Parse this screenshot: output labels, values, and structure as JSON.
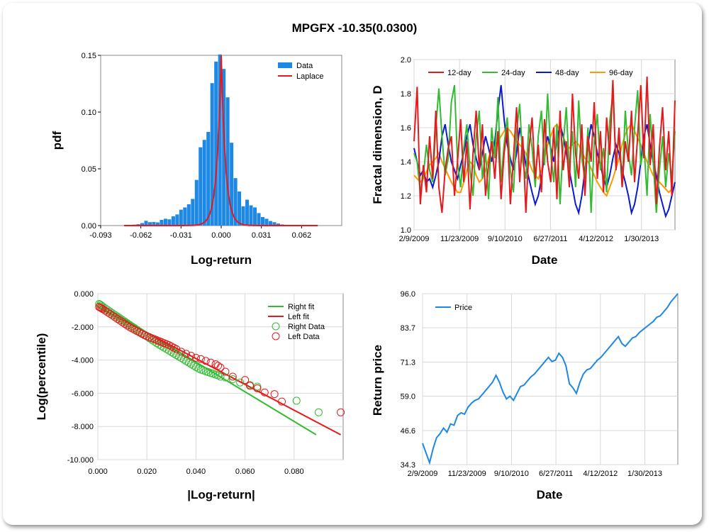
{
  "title": "MPGFX -10.35(0.0300)",
  "chart_data": [
    {
      "id": "hist",
      "type": "bar",
      "xlabel": "Log-return",
      "ylabel": "pdf",
      "xlim": [
        -0.093,
        0.093
      ],
      "ylim": [
        0,
        0.15
      ],
      "xticks": [
        -0.093,
        -0.062,
        -0.031,
        0.0,
        0.031,
        0.062
      ],
      "xtick_labels": [
        "-0.093",
        "-0.062",
        "-0.031",
        "0.000",
        "0.031",
        "0.062"
      ],
      "yticks": [
        0,
        0.05,
        0.1,
        0.15
      ],
      "ytick_labels": [
        "0.00",
        "0.05",
        "0.10",
        "0.15"
      ],
      "legend": [
        "Data",
        "Laplace"
      ],
      "legend_position": "top-right",
      "colors": {
        "bars": "#1e88e5",
        "fit": "#e41a1c"
      },
      "bin_centers": [
        -0.073,
        -0.07,
        -0.067,
        -0.064,
        -0.061,
        -0.058,
        -0.055,
        -0.052,
        -0.049,
        -0.046,
        -0.043,
        -0.04,
        -0.037,
        -0.034,
        -0.031,
        -0.028,
        -0.025,
        -0.022,
        -0.019,
        -0.016,
        -0.013,
        -0.01,
        -0.007,
        -0.004,
        -0.001,
        0.002,
        0.005,
        0.008,
        0.011,
        0.014,
        0.017,
        0.02,
        0.023,
        0.026,
        0.029,
        0.032,
        0.035,
        0.038,
        0.041,
        0.044,
        0.047,
        0.05,
        0.053,
        0.056,
        0.059,
        0.062
      ],
      "values": [
        0.0003,
        0.0003,
        0.0008,
        0.0012,
        0.0022,
        0.0042,
        0.003,
        0.0032,
        0.0028,
        0.005,
        0.006,
        0.0055,
        0.0082,
        0.0098,
        0.014,
        0.016,
        0.0188,
        0.0235,
        0.0402,
        0.069,
        0.0755,
        0.0825,
        0.1255,
        0.1445,
        0.1508,
        0.138,
        0.113,
        0.073,
        0.0418,
        0.03,
        0.017,
        0.0228,
        0.0178,
        0.016,
        0.011,
        0.0075,
        0.006,
        0.004,
        0.003,
        0.0018,
        0.001,
        0.0006,
        0.0004,
        0.0003,
        0.0002,
        0.0001
      ],
      "laplace": {
        "mu": 0.0,
        "b": 0.0033
      }
    },
    {
      "id": "fractal",
      "type": "line",
      "xlabel": "Date",
      "ylabel": "Fractal dimension, D",
      "ylim": [
        1.0,
        2.0
      ],
      "yticks": [
        1.0,
        1.2,
        1.4,
        1.6,
        1.8,
        2.0
      ],
      "ytick_labels": [
        "1.0",
        "1.2",
        "1.4",
        "1.6",
        "1.8",
        "2.0"
      ],
      "xtick_labels": [
        "2/9/2009",
        "11/23/2009",
        "9/10/2010",
        "6/27/2011",
        "4/12/2012",
        "1/30/2013"
      ],
      "legend_position": "top",
      "series": [
        {
          "name": "12-day",
          "color": "#e41a1c",
          "values": [
            1.52,
            1.84,
            1.15,
            1.38,
            1.22,
            1.55,
            1.3,
            1.7,
            1.25,
            1.1,
            1.35,
            1.48,
            1.55,
            1.2,
            1.4,
            1.65,
            1.28,
            1.52,
            1.12,
            1.45,
            1.7,
            1.35,
            1.62,
            1.2,
            1.38,
            1.52,
            1.3,
            1.58,
            1.18,
            1.45,
            1.6,
            1.15,
            1.42,
            1.72,
            1.28,
            1.55,
            1.1,
            1.48,
            1.66,
            1.3,
            1.5,
            1.22,
            1.65,
            1.4,
            1.28,
            1.6,
            1.18,
            1.7,
            1.35,
            1.52,
            1.25,
            1.8,
            1.45,
            1.3,
            1.62,
            1.2,
            1.55,
            1.4,
            1.75,
            1.3,
            1.58,
            1.22,
            1.66,
            1.44,
            1.88,
            1.35,
            1.6,
            1.25,
            1.52,
            1.4,
            1.7,
            1.28,
            1.55,
            1.85,
            1.42,
            1.9,
            1.38,
            1.62,
            1.15,
            1.48,
            1.72,
            1.35,
            1.58,
            1.2,
            1.76
          ]
        },
        {
          "name": "24-day",
          "color": "#33bb33",
          "values": [
            1.45,
            1.4,
            1.22,
            1.32,
            1.5,
            1.35,
            1.28,
            1.6,
            1.83,
            1.55,
            1.32,
            1.42,
            1.75,
            1.85,
            1.4,
            1.25,
            1.48,
            1.62,
            1.35,
            1.2,
            1.55,
            1.7,
            1.3,
            1.45,
            1.18,
            1.6,
            1.42,
            1.78,
            1.28,
            1.5,
            1.66,
            1.35,
            1.22,
            1.58,
            1.74,
            1.4,
            1.3,
            1.62,
            1.48,
            1.25,
            1.55,
            1.7,
            1.38,
            1.8,
            1.45,
            1.28,
            1.62,
            1.15,
            1.5,
            1.72,
            1.35,
            1.58,
            1.25,
            1.76,
            1.42,
            1.3,
            1.6,
            1.1,
            1.52,
            1.68,
            1.35,
            1.48,
            1.22,
            1.64,
            1.8,
            1.4,
            1.55,
            1.25,
            1.7,
            1.45,
            1.32,
            1.6,
            1.82,
            1.38,
            1.5,
            1.2,
            1.68,
            1.4,
            1.1,
            1.35,
            1.55,
            1.25,
            1.45,
            1.3,
            1.58
          ]
        },
        {
          "name": "48-day",
          "color": "#0a1ad0",
          "values": [
            1.48,
            1.4,
            1.32,
            1.35,
            1.28,
            1.3,
            1.25,
            1.32,
            1.4,
            1.55,
            1.62,
            1.5,
            1.4,
            1.35,
            1.3,
            1.38,
            1.45,
            1.55,
            1.62,
            1.5,
            1.42,
            1.35,
            1.45,
            1.55,
            1.48,
            1.4,
            1.52,
            1.7,
            1.85,
            1.65,
            1.5,
            1.42,
            1.35,
            1.45,
            1.6,
            1.5,
            1.38,
            1.3,
            1.22,
            1.15,
            1.2,
            1.3,
            1.45,
            1.55,
            1.48,
            1.4,
            1.52,
            1.62,
            1.55,
            1.45,
            1.35,
            1.25,
            1.15,
            1.1,
            1.2,
            1.35,
            1.5,
            1.62,
            1.55,
            1.45,
            1.38,
            1.3,
            1.25,
            1.32,
            1.42,
            1.5,
            1.45,
            1.35,
            1.28,
            1.2,
            1.1,
            1.15,
            1.25,
            1.4,
            1.55,
            1.62,
            1.5,
            1.4,
            1.32,
            1.22,
            1.15,
            1.08,
            1.12,
            1.2,
            1.28
          ]
        },
        {
          "name": "96-day",
          "color": "#ff9900",
          "values": [
            1.32,
            1.3,
            1.28,
            1.3,
            1.34,
            1.38,
            1.4,
            1.42,
            1.45,
            1.4,
            1.36,
            1.32,
            1.28,
            1.25,
            1.22,
            1.22,
            1.28,
            1.35,
            1.4,
            1.38,
            1.32,
            1.28,
            1.3,
            1.35,
            1.42,
            1.48,
            1.5,
            1.52,
            1.55,
            1.58,
            1.6,
            1.58,
            1.55,
            1.52,
            1.5,
            1.48,
            1.45,
            1.4,
            1.35,
            1.32,
            1.3,
            1.35,
            1.42,
            1.5,
            1.55,
            1.6,
            1.62,
            1.58,
            1.55,
            1.5,
            1.48,
            1.5,
            1.52,
            1.5,
            1.46,
            1.42,
            1.4,
            1.36,
            1.32,
            1.28,
            1.25,
            1.22,
            1.2,
            1.25,
            1.3,
            1.36,
            1.42,
            1.5,
            1.56,
            1.6,
            1.62,
            1.58,
            1.54,
            1.5,
            1.45,
            1.4,
            1.36,
            1.32,
            1.3,
            1.28,
            1.26,
            1.24,
            1.22,
            1.24,
            1.26
          ]
        }
      ]
    },
    {
      "id": "tails",
      "type": "scatter",
      "xlabel": "|Log-return|",
      "ylabel": "Log(percentile)",
      "xlim": [
        0.0,
        0.1
      ],
      "ylim": [
        -10.0,
        0.0
      ],
      "xticks": [
        0.0,
        0.02,
        0.04,
        0.06,
        0.08
      ],
      "xtick_labels": [
        "0.000",
        "0.020",
        "0.040",
        "0.060",
        "0.080"
      ],
      "yticks": [
        0,
        -2,
        -4,
        -6,
        -8,
        -10
      ],
      "ytick_labels": [
        "0.000",
        "-2.000",
        "-4.000",
        "-6.000",
        "-8.000",
        "-10.000"
      ],
      "legend": [
        "Right fit",
        "Left fit",
        "Right Data",
        "Left Data"
      ],
      "legend_position": "top-right",
      "colors": {
        "right": "#33bb33",
        "left": "#e41a1c"
      },
      "right_fit": {
        "x": [
          0.0,
          0.089
        ],
        "y": [
          -0.55,
          -8.5
        ]
      },
      "left_fit": {
        "x": [
          0.0,
          0.099
        ],
        "y": [
          -0.8,
          -8.5
        ]
      },
      "right_data": {
        "x": [
          0.0005,
          0.001,
          0.0015,
          0.002,
          0.003,
          0.004,
          0.005,
          0.006,
          0.007,
          0.008,
          0.009,
          0.01,
          0.011,
          0.012,
          0.013,
          0.014,
          0.015,
          0.016,
          0.017,
          0.018,
          0.019,
          0.02,
          0.021,
          0.022,
          0.023,
          0.024,
          0.025,
          0.026,
          0.027,
          0.028,
          0.029,
          0.03,
          0.031,
          0.032,
          0.033,
          0.034,
          0.035,
          0.036,
          0.037,
          0.038,
          0.039,
          0.04,
          0.041,
          0.042,
          0.043,
          0.044,
          0.045,
          0.046,
          0.047,
          0.048,
          0.049,
          0.05,
          0.052,
          0.055,
          0.058,
          0.062,
          0.065,
          0.081,
          0.09
        ],
        "y": [
          -0.62,
          -0.66,
          -0.72,
          -0.78,
          -0.88,
          -0.98,
          -1.08,
          -1.18,
          -1.28,
          -1.38,
          -1.48,
          -1.58,
          -1.68,
          -1.78,
          -1.88,
          -1.98,
          -2.08,
          -2.18,
          -2.28,
          -2.38,
          -2.48,
          -2.58,
          -2.68,
          -2.78,
          -2.88,
          -2.98,
          -3.07,
          -3.16,
          -3.25,
          -3.34,
          -3.43,
          -3.52,
          -3.61,
          -3.7,
          -3.79,
          -3.88,
          -3.97,
          -4.06,
          -4.15,
          -4.24,
          -4.33,
          -4.42,
          -4.51,
          -4.58,
          -4.62,
          -4.68,
          -4.72,
          -4.78,
          -4.82,
          -4.88,
          -4.92,
          -5.0,
          -5.05,
          -5.15,
          -5.35,
          -5.5,
          -5.6,
          -6.45,
          -7.15
        ]
      },
      "left_data": {
        "x": [
          0.0005,
          0.001,
          0.0015,
          0.002,
          0.003,
          0.004,
          0.005,
          0.006,
          0.007,
          0.008,
          0.009,
          0.01,
          0.011,
          0.012,
          0.013,
          0.014,
          0.015,
          0.016,
          0.017,
          0.018,
          0.019,
          0.02,
          0.021,
          0.022,
          0.023,
          0.024,
          0.025,
          0.026,
          0.027,
          0.028,
          0.029,
          0.03,
          0.031,
          0.032,
          0.034,
          0.036,
          0.038,
          0.04,
          0.042,
          0.044,
          0.046,
          0.048,
          0.049,
          0.05,
          0.052,
          0.055,
          0.06,
          0.062,
          0.065,
          0.068,
          0.072,
          0.075,
          0.099
        ],
        "y": [
          -0.8,
          -0.84,
          -0.88,
          -0.93,
          -1.02,
          -1.12,
          -1.22,
          -1.32,
          -1.42,
          -1.52,
          -1.62,
          -1.72,
          -1.82,
          -1.92,
          -2.02,
          -2.1,
          -2.18,
          -2.26,
          -2.34,
          -2.42,
          -2.5,
          -2.56,
          -2.62,
          -2.68,
          -2.74,
          -2.8,
          -2.86,
          -2.92,
          -2.98,
          -3.04,
          -3.1,
          -3.18,
          -3.26,
          -3.34,
          -3.5,
          -3.62,
          -3.74,
          -3.86,
          -3.94,
          -4.05,
          -4.15,
          -4.25,
          -4.35,
          -4.45,
          -4.7,
          -5.0,
          -5.2,
          -5.55,
          -5.7,
          -5.95,
          -6.05,
          -6.5,
          -7.15
        ]
      }
    },
    {
      "id": "price",
      "type": "line",
      "xlabel": "Date",
      "ylabel": "Return price",
      "ylim": [
        34.3,
        96.0
      ],
      "yticks": [
        34.3,
        46.6,
        59.0,
        71.3,
        83.7,
        96.0
      ],
      "ytick_labels": [
        "34.3",
        "46.6",
        "59.0",
        "71.3",
        "83.7",
        "96.0"
      ],
      "xtick_labels": [
        "2/9/2009",
        "11/23/2009",
        "9/10/2010",
        "6/27/2011",
        "4/12/2012",
        "1/30/2013"
      ],
      "legend_position": "top-left",
      "series": [
        {
          "name": "Price",
          "color": "#1e88e5",
          "values": [
            42.0,
            38.5,
            35.0,
            40.0,
            44.0,
            45.5,
            47.5,
            46.0,
            49.0,
            48.5,
            52.0,
            53.0,
            52.5,
            55.0,
            56.5,
            57.5,
            58.0,
            59.5,
            61.0,
            62.5,
            64.0,
            66.5,
            64.0,
            60.5,
            58.0,
            59.0,
            57.5,
            60.0,
            62.5,
            63.0,
            64.5,
            66.0,
            67.0,
            68.5,
            70.0,
            71.5,
            73.0,
            71.5,
            72.0,
            74.5,
            73.0,
            70.0,
            63.5,
            62.0,
            60.0,
            64.0,
            67.0,
            68.5,
            69.0,
            70.5,
            72.0,
            73.0,
            74.5,
            76.0,
            77.5,
            79.0,
            80.5,
            78.0,
            77.0,
            78.5,
            80.0,
            80.5,
            82.0,
            83.0,
            84.0,
            85.0,
            86.0,
            87.5,
            88.0,
            89.5,
            91.0,
            93.0,
            94.5,
            96.0
          ]
        }
      ]
    }
  ]
}
